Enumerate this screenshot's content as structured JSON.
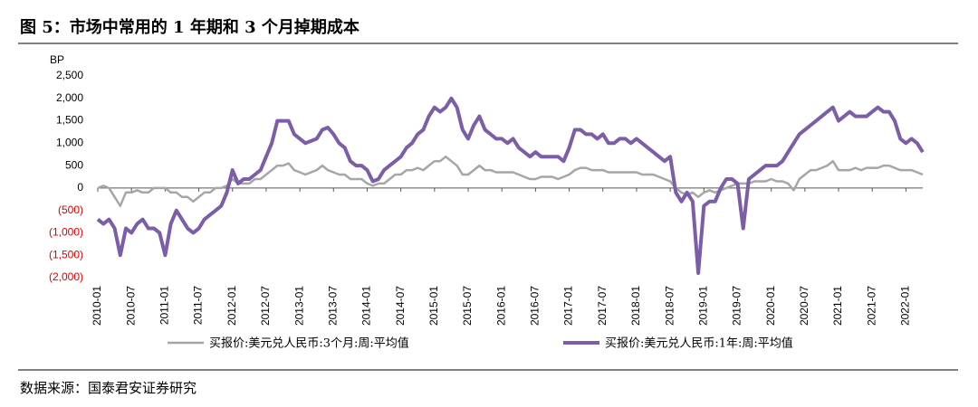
{
  "chart_data": {
    "type": "line",
    "title": "图 5：市场中常用的 1 年期和 3 个月掉期成本",
    "y_label": "BP",
    "source": "数据来源：国泰君安证券研究",
    "categories": [
      "2010-01",
      null,
      null,
      null,
      null,
      null,
      "2010-07",
      null,
      null,
      null,
      null,
      null,
      "2011-01",
      null,
      null,
      null,
      null,
      null,
      "2011-07",
      null,
      null,
      null,
      null,
      null,
      "2012-01",
      null,
      null,
      null,
      null,
      null,
      "2012-07",
      null,
      null,
      null,
      null,
      null,
      "2013-01",
      null,
      null,
      null,
      null,
      null,
      "2013-07",
      null,
      null,
      null,
      null,
      null,
      "2014-01",
      null,
      null,
      null,
      null,
      null,
      "2014-07",
      null,
      null,
      null,
      null,
      null,
      "2015-01",
      null,
      null,
      null,
      null,
      null,
      "2015-07",
      null,
      null,
      null,
      null,
      null,
      "2016-01",
      null,
      null,
      null,
      null,
      null,
      "2016-07",
      null,
      null,
      null,
      null,
      null,
      "2017-01",
      null,
      null,
      null,
      null,
      null,
      "2017-07",
      null,
      null,
      null,
      null,
      null,
      "2018-01",
      null,
      null,
      null,
      null,
      null,
      "2018-07",
      null,
      null,
      null,
      null,
      null,
      "2019-01",
      null,
      null,
      null,
      null,
      null,
      "2019-07",
      null,
      null,
      null,
      null,
      null,
      "2020-01",
      null,
      null,
      null,
      null,
      null,
      "2020-07",
      null,
      null,
      null,
      null,
      null,
      "2021-01",
      null,
      null,
      null,
      null,
      null,
      "2021-07",
      null,
      null,
      null,
      null,
      null,
      "2022-01",
      null,
      null,
      null
    ],
    "series": [
      {
        "name": "买报价:美元兑人民币:3个月:周:平均值",
        "color": "#a6a6a6",
        "width": 2.5,
        "values": [
          0,
          50,
          0,
          -200,
          -400,
          -100,
          -100,
          -50,
          -100,
          -100,
          0,
          0,
          0,
          -100,
          -100,
          -200,
          -200,
          -300,
          -200,
          -100,
          -100,
          0,
          0,
          50,
          200,
          100,
          100,
          100,
          200,
          200,
          300,
          400,
          500,
          500,
          550,
          400,
          350,
          300,
          350,
          400,
          500,
          400,
          350,
          300,
          300,
          200,
          200,
          200,
          100,
          50,
          100,
          100,
          200,
          300,
          300,
          400,
          400,
          450,
          400,
          500,
          600,
          600,
          700,
          600,
          500,
          300,
          300,
          400,
          500,
          400,
          400,
          350,
          350,
          350,
          350,
          300,
          250,
          200,
          200,
          250,
          250,
          250,
          200,
          250,
          300,
          400,
          450,
          450,
          400,
          400,
          400,
          350,
          350,
          350,
          350,
          350,
          350,
          300,
          300,
          300,
          250,
          200,
          150,
          0,
          -100,
          -150,
          -100,
          -200,
          -100,
          -50,
          -100,
          -50,
          0,
          50,
          100,
          100,
          100,
          150,
          150,
          150,
          200,
          150,
          150,
          100,
          -50,
          200,
          300,
          400,
          400,
          450,
          500,
          600,
          400,
          400,
          400,
          450,
          400,
          450,
          450,
          450,
          500,
          500,
          450,
          400,
          400,
          400,
          350,
          300
        ]
      },
      {
        "name": "买报价:美元兑人民币:1年:周:平均值",
        "color": "#7b5ea7",
        "width": 4,
        "values": [
          -700,
          -800,
          -700,
          -900,
          -1500,
          -900,
          -1000,
          -800,
          -700,
          -900,
          -900,
          -1000,
          -1500,
          -800,
          -500,
          -700,
          -900,
          -1000,
          -900,
          -700,
          -600,
          -500,
          -400,
          -100,
          400,
          100,
          200,
          200,
          300,
          400,
          700,
          1000,
          1500,
          1500,
          1500,
          1200,
          1100,
          1000,
          1050,
          1100,
          1300,
          1350,
          1200,
          1000,
          900,
          600,
          500,
          500,
          400,
          150,
          200,
          400,
          500,
          600,
          700,
          900,
          1000,
          1200,
          1300,
          1600,
          1800,
          1700,
          1800,
          2000,
          1800,
          1300,
          1100,
          1400,
          1600,
          1300,
          1200,
          1100,
          1100,
          1000,
          1100,
          900,
          800,
          700,
          800,
          700,
          700,
          700,
          700,
          600,
          900,
          1300,
          1300,
          1200,
          1200,
          1100,
          1200,
          1000,
          1000,
          1100,
          1100,
          1000,
          1100,
          1000,
          900,
          800,
          700,
          600,
          700,
          -100,
          -300,
          -100,
          -300,
          -1900,
          -400,
          -300,
          -300,
          0,
          200,
          200,
          100,
          -900,
          200,
          300,
          400,
          500,
          500,
          500,
          600,
          800,
          1000,
          1200,
          1300,
          1400,
          1500,
          1600,
          1700,
          1800,
          1500,
          1600,
          1700,
          1600,
          1600,
          1600,
          1700,
          1800,
          1700,
          1700,
          1500,
          1100,
          1000,
          1100,
          1000,
          800
        ]
      }
    ],
    "ylim": [
      -2000,
      2500
    ],
    "yticks": [
      {
        "value": -2000,
        "label": "(2,000)"
      },
      {
        "value": -1500,
        "label": "(1,500)"
      },
      {
        "value": -1000,
        "label": "(1,000)"
      },
      {
        "value": -500,
        "label": "(500)"
      },
      0,
      500,
      {
        "value": 1000,
        "label": "1,000"
      },
      {
        "value": 1500,
        "label": "1,500"
      },
      {
        "value": 2000,
        "label": "2,000"
      },
      {
        "value": 2500,
        "label": "2,500"
      }
    ],
    "negative_tick_color": "#e00000",
    "grid": false
  }
}
